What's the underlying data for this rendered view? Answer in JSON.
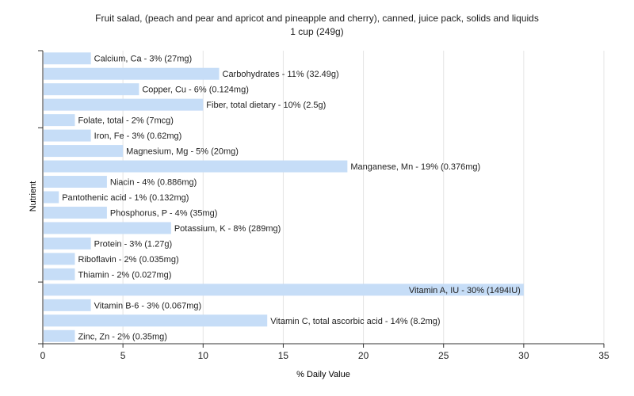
{
  "chart_data": {
    "type": "bar",
    "title": "Fruit salad, (peach and pear and apricot and pineapple and cherry), canned, juice pack, solids and liquids",
    "subtitle": "1 cup (249g)",
    "xlabel": "% Daily Value",
    "ylabel": "Nutrient",
    "xlim": [
      0,
      35
    ],
    "xticks": [
      0,
      5,
      10,
      15,
      20,
      25,
      30,
      35
    ],
    "grid": true,
    "orientation": "horizontal",
    "bar_color": "#c6ddf7",
    "categories": [
      "Calcium, Ca",
      "Carbohydrates",
      "Copper, Cu",
      "Fiber, total dietary",
      "Folate, total",
      "Iron, Fe",
      "Magnesium, Mg",
      "Manganese, Mn",
      "Niacin",
      "Pantothenic acid",
      "Phosphorus, P",
      "Potassium, K",
      "Protein",
      "Riboflavin",
      "Thiamin",
      "Vitamin A, IU",
      "Vitamin B-6",
      "Vitamin C, total ascorbic acid",
      "Zinc, Zn"
    ],
    "values": [
      3,
      11,
      6,
      10,
      2,
      3,
      5,
      19,
      4,
      1,
      4,
      8,
      3,
      2,
      2,
      30,
      3,
      14,
      2
    ],
    "labels": [
      "Calcium, Ca - 3% (27mg)",
      "Carbohydrates - 11% (32.49g)",
      "Copper, Cu - 6% (0.124mg)",
      "Fiber, total dietary - 10% (2.5g)",
      "Folate, total - 2% (7mcg)",
      "Iron, Fe - 3% (0.62mg)",
      "Magnesium, Mg - 5% (20mg)",
      "Manganese, Mn - 19% (0.376mg)",
      "Niacin - 4% (0.886mg)",
      "Pantothenic acid - 1% (0.132mg)",
      "Phosphorus, P - 4% (35mg)",
      "Potassium, K - 8% (289mg)",
      "Protein - 3% (1.27g)",
      "Riboflavin - 2% (0.035mg)",
      "Thiamin - 2% (0.027mg)",
      "Vitamin A, IU - 30% (1494IU)",
      "Vitamin B-6 - 3% (0.067mg)",
      "Vitamin C, total ascorbic acid - 14% (8.2mg)",
      "Zinc, Zn - 2% (0.35mg)"
    ]
  }
}
